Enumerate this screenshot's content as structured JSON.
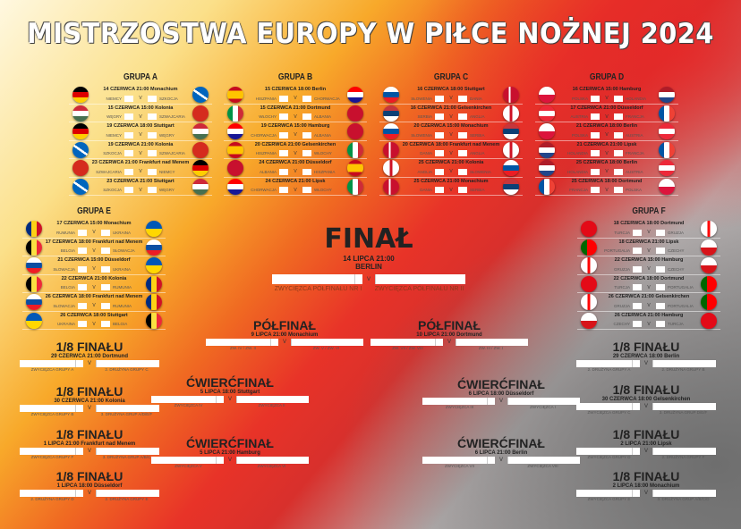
{
  "title": "MISTRZOSTWA EUROPY W PIŁCE NOŻNEJ 2024",
  "flags": {
    "NIEMCY": "linear-gradient(#000 33%,#dd0000 33% 66%,#ffce00 66%)",
    "SZKOCJA": "linear-gradient(35deg,#0065bd 45%,#fff 45% 55%,#0065bd 55%)",
    "WĘGRY": "linear-gradient(#ce2939 33%,#fff 33% 66%,#477050 66%)",
    "SZWAJCARIA": "#d52b1e",
    "HISZPANIA": "linear-gradient(#c60b1e 25%,#ffc400 25% 75%,#c60b1e 75%)",
    "CHORWACJA": "linear-gradient(#ff0000 33%,#fff 33% 66%,#171796 66%)",
    "WŁOCHY": "linear-gradient(90deg,#009246 33%,#fff 33% 66%,#ce2b37 66%)",
    "ALBANIA": "#c8102e",
    "SŁOWENIA": "linear-gradient(#fff 33%,#0055a4 33% 66%,#ed1c24 66%)",
    "DANIA": "linear-gradient(90deg,#c8102e 35%,#fff 35% 48%,#c8102e 48%)",
    "SERBIA": "linear-gradient(#c6363c 33%,#0c4076 33% 66%,#fff 66%)",
    "ANGLIA": "linear-gradient(90deg,#fff 42%,#ce1124 42% 58%,#fff 58%)",
    "POLSKA": "linear-gradient(#fff 50%,#dc143c 50%)",
    "HOLANDIA": "linear-gradient(#ae1c28 33%,#fff 33% 66%,#21468b 66%)",
    "AUSTRIA": "linear-gradient(#ed2939 33%,#fff 33% 66%,#ed2939 66%)",
    "FRANCJA": "linear-gradient(90deg,#0055a4 33%,#fff 33% 66%,#ef4135 66%)",
    "RUMUNIA": "linear-gradient(90deg,#002b7f 33%,#fcd116 33% 66%,#ce1126 66%)",
    "UKRAINA": "linear-gradient(#0057b7 50%,#ffd700 50%)",
    "BELGIA": "linear-gradient(90deg,#000 33%,#fae042 33% 66%,#ed2939 66%)",
    "SŁOWACJA": "linear-gradient(#fff 33%,#0b4ea2 33% 66%,#ee1c25 66%)",
    "TURCJA": "#e30a17",
    "GRUZJA": "linear-gradient(90deg,#fff 42%,#ff0000 42% 58%,#fff 58%)",
    "PORTUGALIA": "linear-gradient(90deg,#006600 40%,#ff0000 40%)",
    "CZECHY": "linear-gradient(#fff 50%,#d7141a 50%)"
  },
  "groups": [
    {
      "name": "GRUPA A",
      "matches": [
        {
          "date": "14 CZERWCA 21:00  Monachium",
          "home": "NIEMCY",
          "away": "SZKOCJA"
        },
        {
          "date": "15 CZERWCA 15:00  Kolonia",
          "home": "WĘGRY",
          "away": "SZWAJCARIA"
        },
        {
          "date": "19 CZERWCA 18:00  Stuttgart",
          "home": "NIEMCY",
          "away": "WĘGRY"
        },
        {
          "date": "19 CZERWCA 21:00  Kolonia",
          "home": "SZKOCJA",
          "away": "SZWAJCARIA"
        },
        {
          "date": "23 CZERWCA 21:00  Frankfurt nad Menem",
          "home": "SZWAJCARIA",
          "away": "NIEMCY"
        },
        {
          "date": "23 CZERWCA 21:00  Stuttgart",
          "home": "SZKOCJA",
          "away": "WĘGRY"
        }
      ]
    },
    {
      "name": "GRUPA B",
      "matches": [
        {
          "date": "15 CZERWCA 18:00  Berlin",
          "home": "HISZPANIA",
          "away": "CHORWACJA"
        },
        {
          "date": "15 CZERWCA 21:00  Dortmund",
          "home": "WŁOCHY",
          "away": "ALBANIA"
        },
        {
          "date": "19 CZERWCA 15:00  Hamburg",
          "home": "CHORWACJA",
          "away": "ALBANIA"
        },
        {
          "date": "20 CZERWCA 21:00  Gelsenkirchen",
          "home": "HISZPANIA",
          "away": "WŁOCHY"
        },
        {
          "date": "24 CZERWCA 21:00  Düsseldorf",
          "home": "ALBANIA",
          "away": "HISZPANIA"
        },
        {
          "date": "24 CZERWCA 21:00  Lipsk",
          "home": "CHORWACJA",
          "away": "WŁOCHY"
        }
      ]
    },
    {
      "name": "GRUPA C",
      "matches": [
        {
          "date": "16 CZERWCA 18:00  Stuttgart",
          "home": "SŁOWENIA",
          "away": "DANIA"
        },
        {
          "date": "16 CZERWCA 21:00  Gelsenkirchen",
          "home": "SERBIA",
          "away": "ANGLIA"
        },
        {
          "date": "20 CZERWCA 15:00  Monachium",
          "home": "SŁOWENIA",
          "away": "SERBIA"
        },
        {
          "date": "20 CZERWCA 18:00  Frankfurt nad Menem",
          "home": "DANIA",
          "away": "ANGLIA"
        },
        {
          "date": "25 CZERWCA 21:00  Kolonia",
          "home": "ANGLIA",
          "away": "SŁOWENIA"
        },
        {
          "date": "25 CZERWCA 21:00  Monachium",
          "home": "DANIA",
          "away": "SERBIA"
        }
      ]
    },
    {
      "name": "GRUPA D",
      "matches": [
        {
          "date": "16 CZERWCA 15:00  Hamburg",
          "home": "POLSKA",
          "away": "HOLANDIA"
        },
        {
          "date": "17 CZERWCA 21:00  Düsseldorf",
          "home": "AUSTRIA",
          "away": "FRANCJA"
        },
        {
          "date": "21 CZERWCA 18:00  Berlin",
          "home": "POLSKA",
          "away": "AUSTRIA"
        },
        {
          "date": "21 CZERWCA 21:00  Lipsk",
          "home": "HOLANDIA",
          "away": "FRANCJA"
        },
        {
          "date": "25 CZERWCA 18:00  Berlin",
          "home": "HOLANDIA",
          "away": "AUSTRIA"
        },
        {
          "date": "25 CZERWCA 18:00  Dortmund",
          "home": "FRANCJA",
          "away": "POLSKA"
        }
      ]
    },
    {
      "name": "GRUPA E",
      "matches": [
        {
          "date": "17 CZERWCA 15:00  Monachium",
          "home": "RUMUNIA",
          "away": "UKRAINA"
        },
        {
          "date": "17 CZERWCA 18:00  Frankfurt nad Menem",
          "home": "BELGIA",
          "away": "SŁOWACJA"
        },
        {
          "date": "21 CZERWCA 15:00  Düsseldorf",
          "home": "SŁOWACJA",
          "away": "UKRAINA"
        },
        {
          "date": "22 CZERWCA 21:00  Kolonia",
          "home": "BELGIA",
          "away": "RUMUNIA"
        },
        {
          "date": "26 CZERWCA 18:00  Frankfurt nad Menem",
          "home": "SŁOWACJA",
          "away": "RUMUNIA"
        },
        {
          "date": "26 CZERWCA 18:00  Stuttgart",
          "home": "UKRAINA",
          "away": "BELGIA"
        }
      ]
    },
    {
      "name": "GRUPA F",
      "matches": [
        {
          "date": "18 CZERWCA 18:00  Dortmund",
          "home": "TURCJA",
          "away": "GRUZJA"
        },
        {
          "date": "18 CZERWCA 21:00  Lipsk",
          "home": "PORTUGALIA",
          "away": "CZECHY"
        },
        {
          "date": "22 CZERWCA 15:00  Hamburg",
          "home": "GRUZJA",
          "away": "CZECHY"
        },
        {
          "date": "22 CZERWCA 18:00  Dortmund",
          "home": "TURCJA",
          "away": "PORTUGALIA"
        },
        {
          "date": "26 CZERWCA 21:00  Gelsenkirchen",
          "home": "GRUZJA",
          "away": "PORTUGALIA"
        },
        {
          "date": "26 CZERWCA 21:00  Hamburg",
          "home": "CZECHY",
          "away": "TURCJA"
        }
      ]
    }
  ],
  "vs": "V",
  "knockout": [
    {
      "stage": "FINAŁ",
      "date": "14 LIPCA 21:00",
      "city": "BERLIN",
      "home": "ZWYCIĘZCA PÓŁFINAŁU NR I",
      "away": "ZWYCIĘZCA PÓŁFINAŁU NR II"
    },
    {
      "stage": "PÓŁFINAŁ",
      "date": "9 LIPCA 21:00  Monachium",
      "home": "ZW. IV / ZW. II",
      "away": "ZW. V / ZW. VI"
    },
    {
      "stage": "PÓŁFINAŁ",
      "date": "10 LIPCA 21:00  Dortmund",
      "home": "ZW. VII / ZW. VIII",
      "away": "ZW. III / ZW. I"
    },
    {
      "stage": "ĆWIERĆFINAŁ",
      "date": "5 LIPCA 18:00  Stuttgart",
      "home": "ZWYCIĘZCA IV",
      "away": "ZWYCIĘZCA II"
    },
    {
      "stage": "ĆWIERĆFINAŁ",
      "date": "5 LIPCA 21:00  Hamburg",
      "home": "ZWYCIĘZCA V",
      "away": "ZWYCIĘZCA VI"
    },
    {
      "stage": "ĆWIERĆFINAŁ",
      "date": "6 LIPCA 18:00  Düsseldorf",
      "home": "ZWYCIĘZCA III",
      "away": "ZWYCIĘZCA I"
    },
    {
      "stage": "ĆWIERĆFINAŁ",
      "date": "6 LIPCA 21:00  Berlin",
      "home": "ZWYCIĘZCA VII",
      "away": "ZWYCIĘZCA VIII"
    },
    {
      "stage": "1/8 FINAŁU",
      "date": "29 CZERWCA 21:00  Dortmund",
      "home": "ZWYCIĘZCA GRUPY A",
      "away": "2. DRUŻYNA GRUPY C"
    },
    {
      "stage": "1/8 FINAŁU",
      "date": "30 CZERWCA 21:00  Kolonia",
      "home": "ZWYCIĘZCA GRUPY B",
      "away": "3. DRUŻYNA GRUP A/D/E/F"
    },
    {
      "stage": "1/8 FINAŁU",
      "date": "1 LIPCA 21:00  Frankfurt nad Menem",
      "home": "ZWYCIĘZCA GRUPY F",
      "away": "3. DRUŻYNA GRUP A/B/C"
    },
    {
      "stage": "1/8 FINAŁU",
      "date": "1 LIPCA 18:00  Düsseldorf",
      "home": "2. DRUŻYNA GRUPY D",
      "away": "2. DRUŻYNA GRUPY E"
    },
    {
      "stage": "1/8 FINAŁU",
      "date": "29 CZERWCA 18:00  Berlin",
      "home": "2. DRUŻYNA GRUPY A",
      "away": "2. DRUŻYNA GRUPY B"
    },
    {
      "stage": "1/8 FINAŁU",
      "date": "30 CZERWCA 18:00  Gelsenkirchen",
      "home": "ZWYCIĘZCA GRUPY C",
      "away": "3. DRUŻYNA GRUP D/E/F"
    },
    {
      "stage": "1/8 FINAŁU",
      "date": "2 LIPCA 21:00  Lipsk",
      "home": "ZWYCIĘZCA GRUPY D",
      "away": "2. DRUŻYNA GRUPY F"
    },
    {
      "stage": "1/8 FINAŁU",
      "date": "2 LIPCA 18:00  Monachium",
      "home": "ZWYCIĘZCA GRUPY E",
      "away": "3. DRUŻYNA GRUP A/B/C/D"
    }
  ]
}
